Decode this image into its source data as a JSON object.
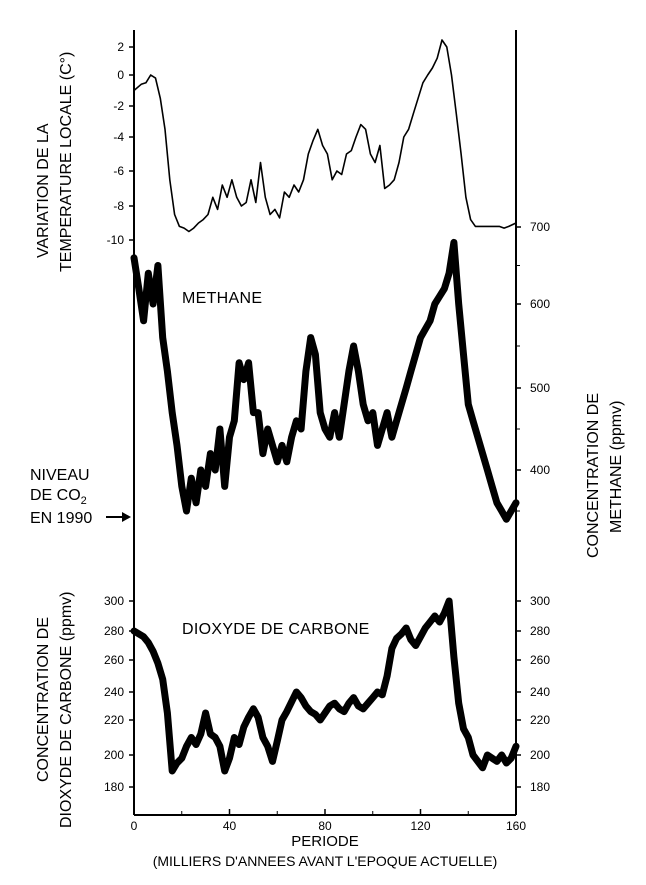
{
  "chart_data": {
    "type": "line",
    "x_axis": {
      "label": "PERIODE",
      "sublabel": "(MILLIERS D'ANNEES AVANT L'EPOQUE ACTUELLE)",
      "range": [
        0,
        160
      ],
      "ticks": [
        "0",
        "40",
        "80",
        "120",
        "160"
      ]
    },
    "panels": {
      "temperature": {
        "axis_label_line1": "VARIATION DE LA",
        "axis_label_line2": "TEMPERATURE LOCALE (C°)",
        "ticks": [
          "2",
          "0",
          "-2",
          "-4",
          "-6",
          "-8",
          "-10"
        ],
        "range": [
          -10,
          2
        ],
        "x": [
          0,
          3,
          5,
          7,
          9,
          11,
          13,
          15,
          17,
          19,
          21,
          23,
          25,
          27,
          29,
          31,
          33,
          35,
          37,
          39,
          41,
          43,
          45,
          47,
          49,
          51,
          53,
          55,
          57,
          59,
          61,
          63,
          65,
          67,
          69,
          71,
          73,
          75,
          77,
          79,
          81,
          83,
          85,
          87,
          89,
          91,
          93,
          95,
          97,
          99,
          101,
          103,
          105,
          107,
          109,
          111,
          113,
          115,
          117,
          119,
          121,
          123,
          125,
          127,
          129,
          131,
          133,
          135,
          137,
          139,
          141,
          143,
          145,
          147,
          149,
          151,
          153,
          155,
          157,
          160
        ],
        "values": [
          -1,
          -0.6,
          -0.5,
          0,
          -0.2,
          -1.5,
          -3.5,
          -6.5,
          -8.5,
          -9.2,
          -9.3,
          -9.5,
          -9.3,
          -9,
          -8.8,
          -8.5,
          -7.5,
          -8.2,
          -6.8,
          -7.5,
          -6.5,
          -7.5,
          -8,
          -7.8,
          -6.5,
          -7.8,
          -5.5,
          -7.5,
          -8.5,
          -8.2,
          -8.7,
          -7.2,
          -7.5,
          -6.8,
          -7.2,
          -6.5,
          -5,
          -4.2,
          -3.5,
          -4.5,
          -5,
          -6.5,
          -6,
          -6.2,
          -5,
          -4.8,
          -4,
          -3.2,
          -3.5,
          -5,
          -5.5,
          -4.5,
          -7,
          -6.8,
          -6.5,
          -5.5,
          -4,
          -3.5,
          -2.5,
          -1.5,
          -0.5,
          0,
          0.5,
          1.2,
          2.5,
          2,
          0,
          -2.5,
          -5,
          -7.5,
          -8.8,
          -9.2,
          -9.2,
          -9.2,
          -9.2,
          -9.2,
          -9.2,
          -9.3,
          -9.2,
          -9
        ]
      },
      "methane": {
        "series_name": "METHANE",
        "axis_label_line1": "CONCENTRATION DE",
        "axis_label_line2": "METHANE (ppmv)",
        "ticks": [
          "700",
          "600",
          "500",
          "400"
        ],
        "range": [
          320,
          700
        ],
        "x": [
          0,
          2,
          4,
          6,
          8,
          10,
          12,
          14,
          16,
          18,
          20,
          22,
          24,
          26,
          28,
          30,
          32,
          34,
          36,
          38,
          40,
          42,
          44,
          46,
          48,
          50,
          52,
          54,
          56,
          58,
          60,
          62,
          64,
          66,
          68,
          70,
          72,
          74,
          76,
          78,
          80,
          82,
          84,
          86,
          88,
          90,
          92,
          94,
          96,
          98,
          100,
          102,
          104,
          106,
          108,
          110,
          112,
          114,
          116,
          118,
          120,
          122,
          124,
          126,
          128,
          130,
          132,
          134,
          136,
          138,
          140,
          142,
          144,
          146,
          148,
          150,
          152,
          154,
          156,
          158,
          160
        ],
        "values": [
          660,
          620,
          580,
          640,
          600,
          650,
          560,
          520,
          470,
          430,
          380,
          350,
          390,
          360,
          400,
          380,
          420,
          400,
          450,
          380,
          440,
          460,
          530,
          510,
          530,
          470,
          470,
          420,
          450,
          430,
          410,
          430,
          410,
          440,
          460,
          450,
          520,
          560,
          540,
          470,
          450,
          440,
          470,
          440,
          480,
          520,
          550,
          520,
          480,
          460,
          470,
          430,
          450,
          470,
          440,
          460,
          480,
          500,
          520,
          540,
          560,
          570,
          580,
          600,
          610,
          620,
          640,
          680,
          600,
          540,
          480,
          460,
          440,
          420,
          400,
          380,
          360,
          350,
          340,
          350,
          360
        ]
      },
      "co2": {
        "series_name": "DIOXYDE DE CARBONE",
        "axis_label_line1": "CONCENTRATION DE",
        "axis_label_line2": "DIOXYDE DE CARBONE (ppmv)",
        "ticks": [
          "300",
          "280",
          "260",
          "240",
          "220",
          "200",
          "180"
        ],
        "range": [
          180,
          300
        ],
        "x": [
          0,
          2,
          4,
          6,
          8,
          10,
          12,
          14,
          16,
          18,
          20,
          22,
          24,
          26,
          28,
          30,
          32,
          34,
          36,
          38,
          40,
          42,
          44,
          46,
          48,
          50,
          52,
          54,
          56,
          58,
          60,
          62,
          64,
          66,
          68,
          70,
          72,
          74,
          76,
          78,
          80,
          82,
          84,
          86,
          88,
          90,
          92,
          94,
          96,
          98,
          100,
          102,
          104,
          106,
          108,
          110,
          112,
          114,
          116,
          118,
          120,
          122,
          124,
          126,
          128,
          130,
          132,
          134,
          136,
          138,
          140,
          142,
          144,
          146,
          148,
          150,
          152,
          154,
          156,
          158,
          160
        ],
        "values": [
          280,
          278,
          276,
          272,
          266,
          258,
          248,
          225,
          190,
          195,
          198,
          205,
          210,
          206,
          212,
          225,
          212,
          210,
          205,
          190,
          198,
          210,
          206,
          216,
          222,
          228,
          222,
          210,
          205,
          196,
          208,
          220,
          226,
          233,
          240,
          236,
          230,
          226,
          224,
          220,
          225,
          230,
          232,
          228,
          226,
          232,
          236,
          230,
          228,
          232,
          236,
          240,
          238,
          250,
          268,
          275,
          278,
          282,
          274,
          270,
          276,
          282,
          286,
          290,
          286,
          292,
          300,
          262,
          232,
          215,
          210,
          200,
          196,
          192,
          200,
          198,
          196,
          200,
          195,
          198,
          205
        ]
      }
    },
    "annotation": {
      "line1": "NIVEAU",
      "line2": "DE CO",
      "line2_sub": "2",
      "line3": "EN 1990"
    },
    "colors": {
      "ink": "#000000",
      "background": "#ffffff"
    }
  }
}
